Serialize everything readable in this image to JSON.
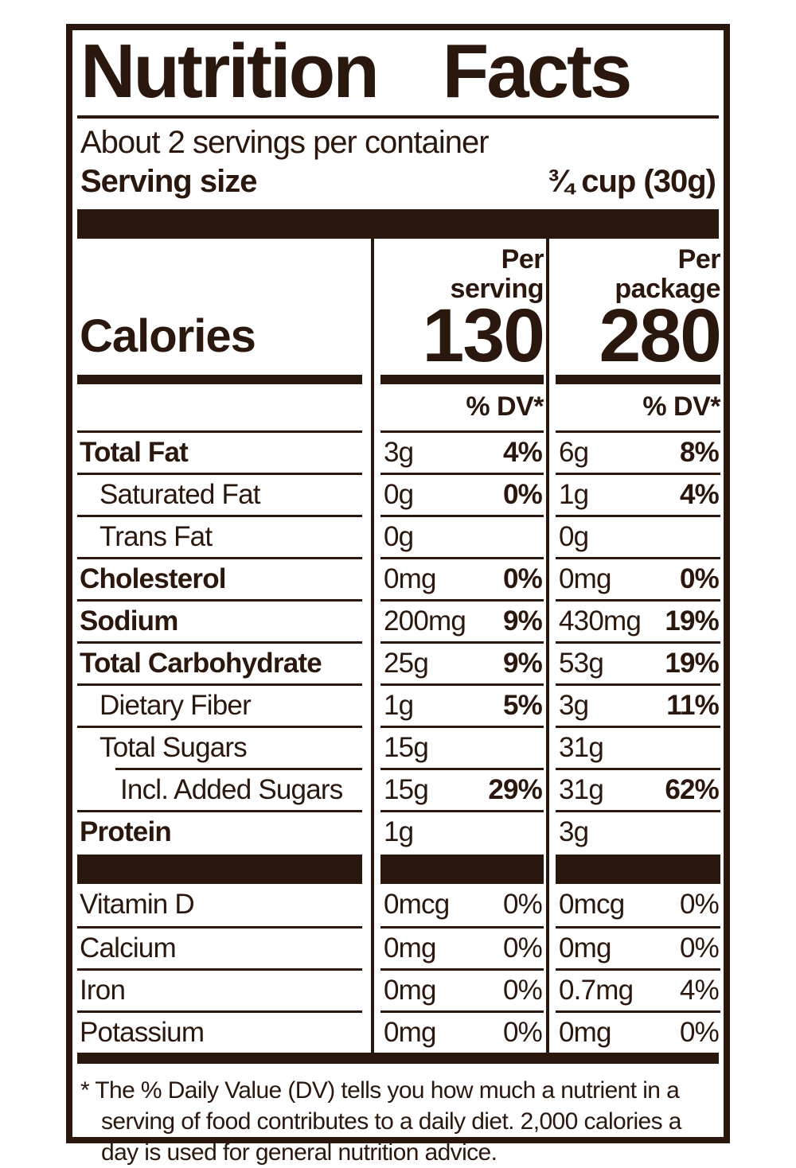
{
  "nutrition_label": {
    "title": "Nutrition Facts",
    "servings_per_container": "About 2 servings per container",
    "serving_size": {
      "label": "Serving size",
      "value": "¾ cup (30g)"
    },
    "calories": {
      "label": "Calories",
      "per_serving": "130",
      "per_package": "280"
    },
    "column_headers": {
      "serving": {
        "line1": "Per",
        "line2": "serving",
        "dv": "% DV*"
      },
      "package": {
        "line1": "Per",
        "line2": "package",
        "dv": "% DV*"
      }
    },
    "nutrients": [
      {
        "name": "Total Fat",
        "serving_amount": "3g",
        "serving_dv": "4%",
        "package_amount": "6g",
        "package_dv": "8%"
      },
      {
        "name": "Saturated Fat",
        "serving_amount": "0g",
        "serving_dv": "0%",
        "package_amount": "1g",
        "package_dv": "4%"
      },
      {
        "name": "Trans Fat",
        "serving_amount": "0g",
        "serving_dv": "",
        "package_amount": "0g",
        "package_dv": ""
      },
      {
        "name": "Cholesterol",
        "serving_amount": "0mg",
        "serving_dv": "0%",
        "package_amount": "0mg",
        "package_dv": "0%"
      },
      {
        "name": "Sodium",
        "serving_amount": "200mg",
        "serving_dv": "9%",
        "package_amount": "430mg",
        "package_dv": "19%"
      },
      {
        "name": "Total Carbohydrate",
        "serving_amount": "25g",
        "serving_dv": "9%",
        "package_amount": "53g",
        "package_dv": "19%"
      },
      {
        "name": "Dietary Fiber",
        "serving_amount": "1g",
        "serving_dv": "5%",
        "package_amount": "3g",
        "package_dv": "11%"
      },
      {
        "name": "Total Sugars",
        "serving_amount": "15g",
        "serving_dv": "",
        "package_amount": "31g",
        "package_dv": ""
      },
      {
        "name": "Incl. Added Sugars",
        "serving_amount": "15g",
        "serving_dv": "29%",
        "package_amount": "31g",
        "package_dv": "62%"
      },
      {
        "name": "Protein",
        "serving_amount": "1g",
        "serving_dv": "",
        "package_amount": "3g",
        "package_dv": ""
      }
    ],
    "micronutrients": [
      {
        "name": "Vitamin D",
        "serving_amount": "0mcg",
        "serving_dv": "0%",
        "package_amount": "0mcg",
        "package_dv": "0%"
      },
      {
        "name": "Calcium",
        "serving_amount": "0mg",
        "serving_dv": "0%",
        "package_amount": "0mg",
        "package_dv": "0%"
      },
      {
        "name": "Iron",
        "serving_amount": "0mg",
        "serving_dv": "0%",
        "package_amount": "0.7mg",
        "package_dv": "4%"
      },
      {
        "name": "Potassium",
        "serving_amount": "0mg",
        "serving_dv": "0%",
        "package_amount": "0mg",
        "package_dv": "0%"
      }
    ],
    "footnote": "* The % Daily Value (DV) tells you how much a nutrient in a serving of food contributes to a daily diet. 2,000 calories a day is used for general nutrition advice.",
    "colors": {
      "ink": "#2a170d",
      "background": "#ffffff"
    }
  }
}
